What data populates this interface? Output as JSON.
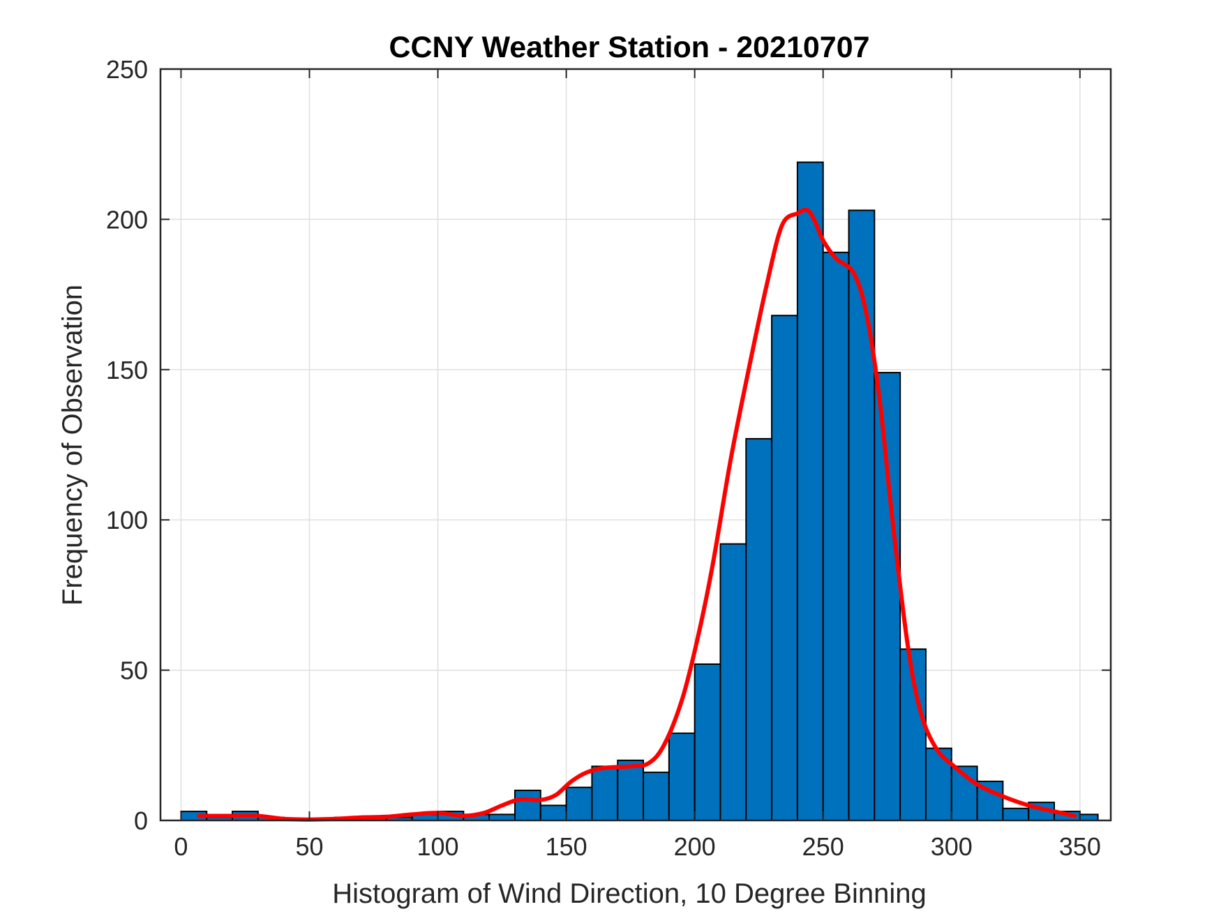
{
  "chart_data": {
    "type": "bar",
    "title": "CCNY Weather Station - 20210707",
    "xlabel": "Histogram of Wind Direction, 10 Degree Binning",
    "ylabel": "Frequency of Observation",
    "xlim": [
      -8,
      362
    ],
    "ylim": [
      0,
      250
    ],
    "xticks": [
      0,
      50,
      100,
      150,
      200,
      250,
      300,
      350
    ],
    "yticks": [
      0,
      50,
      100,
      150,
      200,
      250
    ],
    "grid": true,
    "colors": {
      "bars": "#0072BD",
      "bar_edge": "#000000",
      "curve": "#FF0000",
      "grid": "#DFDFDF",
      "axes": "#262626"
    },
    "bins": [
      {
        "start": 0,
        "end": 10,
        "count": 3
      },
      {
        "start": 10,
        "end": 20,
        "count": 1
      },
      {
        "start": 20,
        "end": 30,
        "count": 3
      },
      {
        "start": 30,
        "end": 40,
        "count": 1
      },
      {
        "start": 40,
        "end": 50,
        "count": 0
      },
      {
        "start": 50,
        "end": 60,
        "count": 0
      },
      {
        "start": 60,
        "end": 70,
        "count": 1
      },
      {
        "start": 70,
        "end": 80,
        "count": 1
      },
      {
        "start": 80,
        "end": 90,
        "count": 1
      },
      {
        "start": 90,
        "end": 100,
        "count": 2
      },
      {
        "start": 100,
        "end": 110,
        "count": 3
      },
      {
        "start": 110,
        "end": 120,
        "count": 2
      },
      {
        "start": 120,
        "end": 130,
        "count": 2
      },
      {
        "start": 130,
        "end": 140,
        "count": 10
      },
      {
        "start": 140,
        "end": 150,
        "count": 5
      },
      {
        "start": 150,
        "end": 160,
        "count": 11
      },
      {
        "start": 160,
        "end": 170,
        "count": 18
      },
      {
        "start": 170,
        "end": 180,
        "count": 20
      },
      {
        "start": 180,
        "end": 190,
        "count": 16
      },
      {
        "start": 190,
        "end": 200,
        "count": 29
      },
      {
        "start": 200,
        "end": 210,
        "count": 52
      },
      {
        "start": 210,
        "end": 220,
        "count": 92
      },
      {
        "start": 220,
        "end": 230,
        "count": 127
      },
      {
        "start": 230,
        "end": 240,
        "count": 168
      },
      {
        "start": 240,
        "end": 250,
        "count": 219
      },
      {
        "start": 250,
        "end": 260,
        "count": 189
      },
      {
        "start": 260,
        "end": 270,
        "count": 203
      },
      {
        "start": 270,
        "end": 280,
        "count": 149
      },
      {
        "start": 280,
        "end": 290,
        "count": 57
      },
      {
        "start": 290,
        "end": 300,
        "count": 24
      },
      {
        "start": 300,
        "end": 310,
        "count": 18
      },
      {
        "start": 310,
        "end": 320,
        "count": 13
      },
      {
        "start": 320,
        "end": 330,
        "count": 4
      },
      {
        "start": 330,
        "end": 340,
        "count": 6
      },
      {
        "start": 340,
        "end": 350,
        "count": 3
      },
      {
        "start": 350,
        "end": 357,
        "count": 2
      }
    ],
    "curve": {
      "x": [
        7,
        20,
        30,
        40,
        50,
        60,
        70,
        80,
        90,
        100,
        110,
        118,
        125,
        132,
        140,
        146,
        152,
        158,
        165,
        175,
        182,
        188,
        195,
        201,
        207,
        214,
        221,
        228,
        234,
        240,
        244,
        247,
        250,
        255,
        262,
        267,
        272,
        277,
        283,
        288,
        294,
        301,
        310,
        320,
        330,
        340,
        348
      ],
      "y": [
        1.5,
        1.5,
        1.5,
        0.5,
        0.3,
        0.5,
        1,
        1.2,
        2,
        2.5,
        1.5,
        2.5,
        5,
        7,
        6.8,
        8.5,
        13,
        16,
        17.5,
        18,
        19,
        25,
        40,
        60,
        85,
        120,
        150,
        178,
        198,
        202,
        203,
        199,
        193,
        187,
        182,
        168,
        140,
        100,
        58,
        36,
        24,
        18,
        12,
        8,
        5,
        3,
        1.5
      ]
    }
  }
}
